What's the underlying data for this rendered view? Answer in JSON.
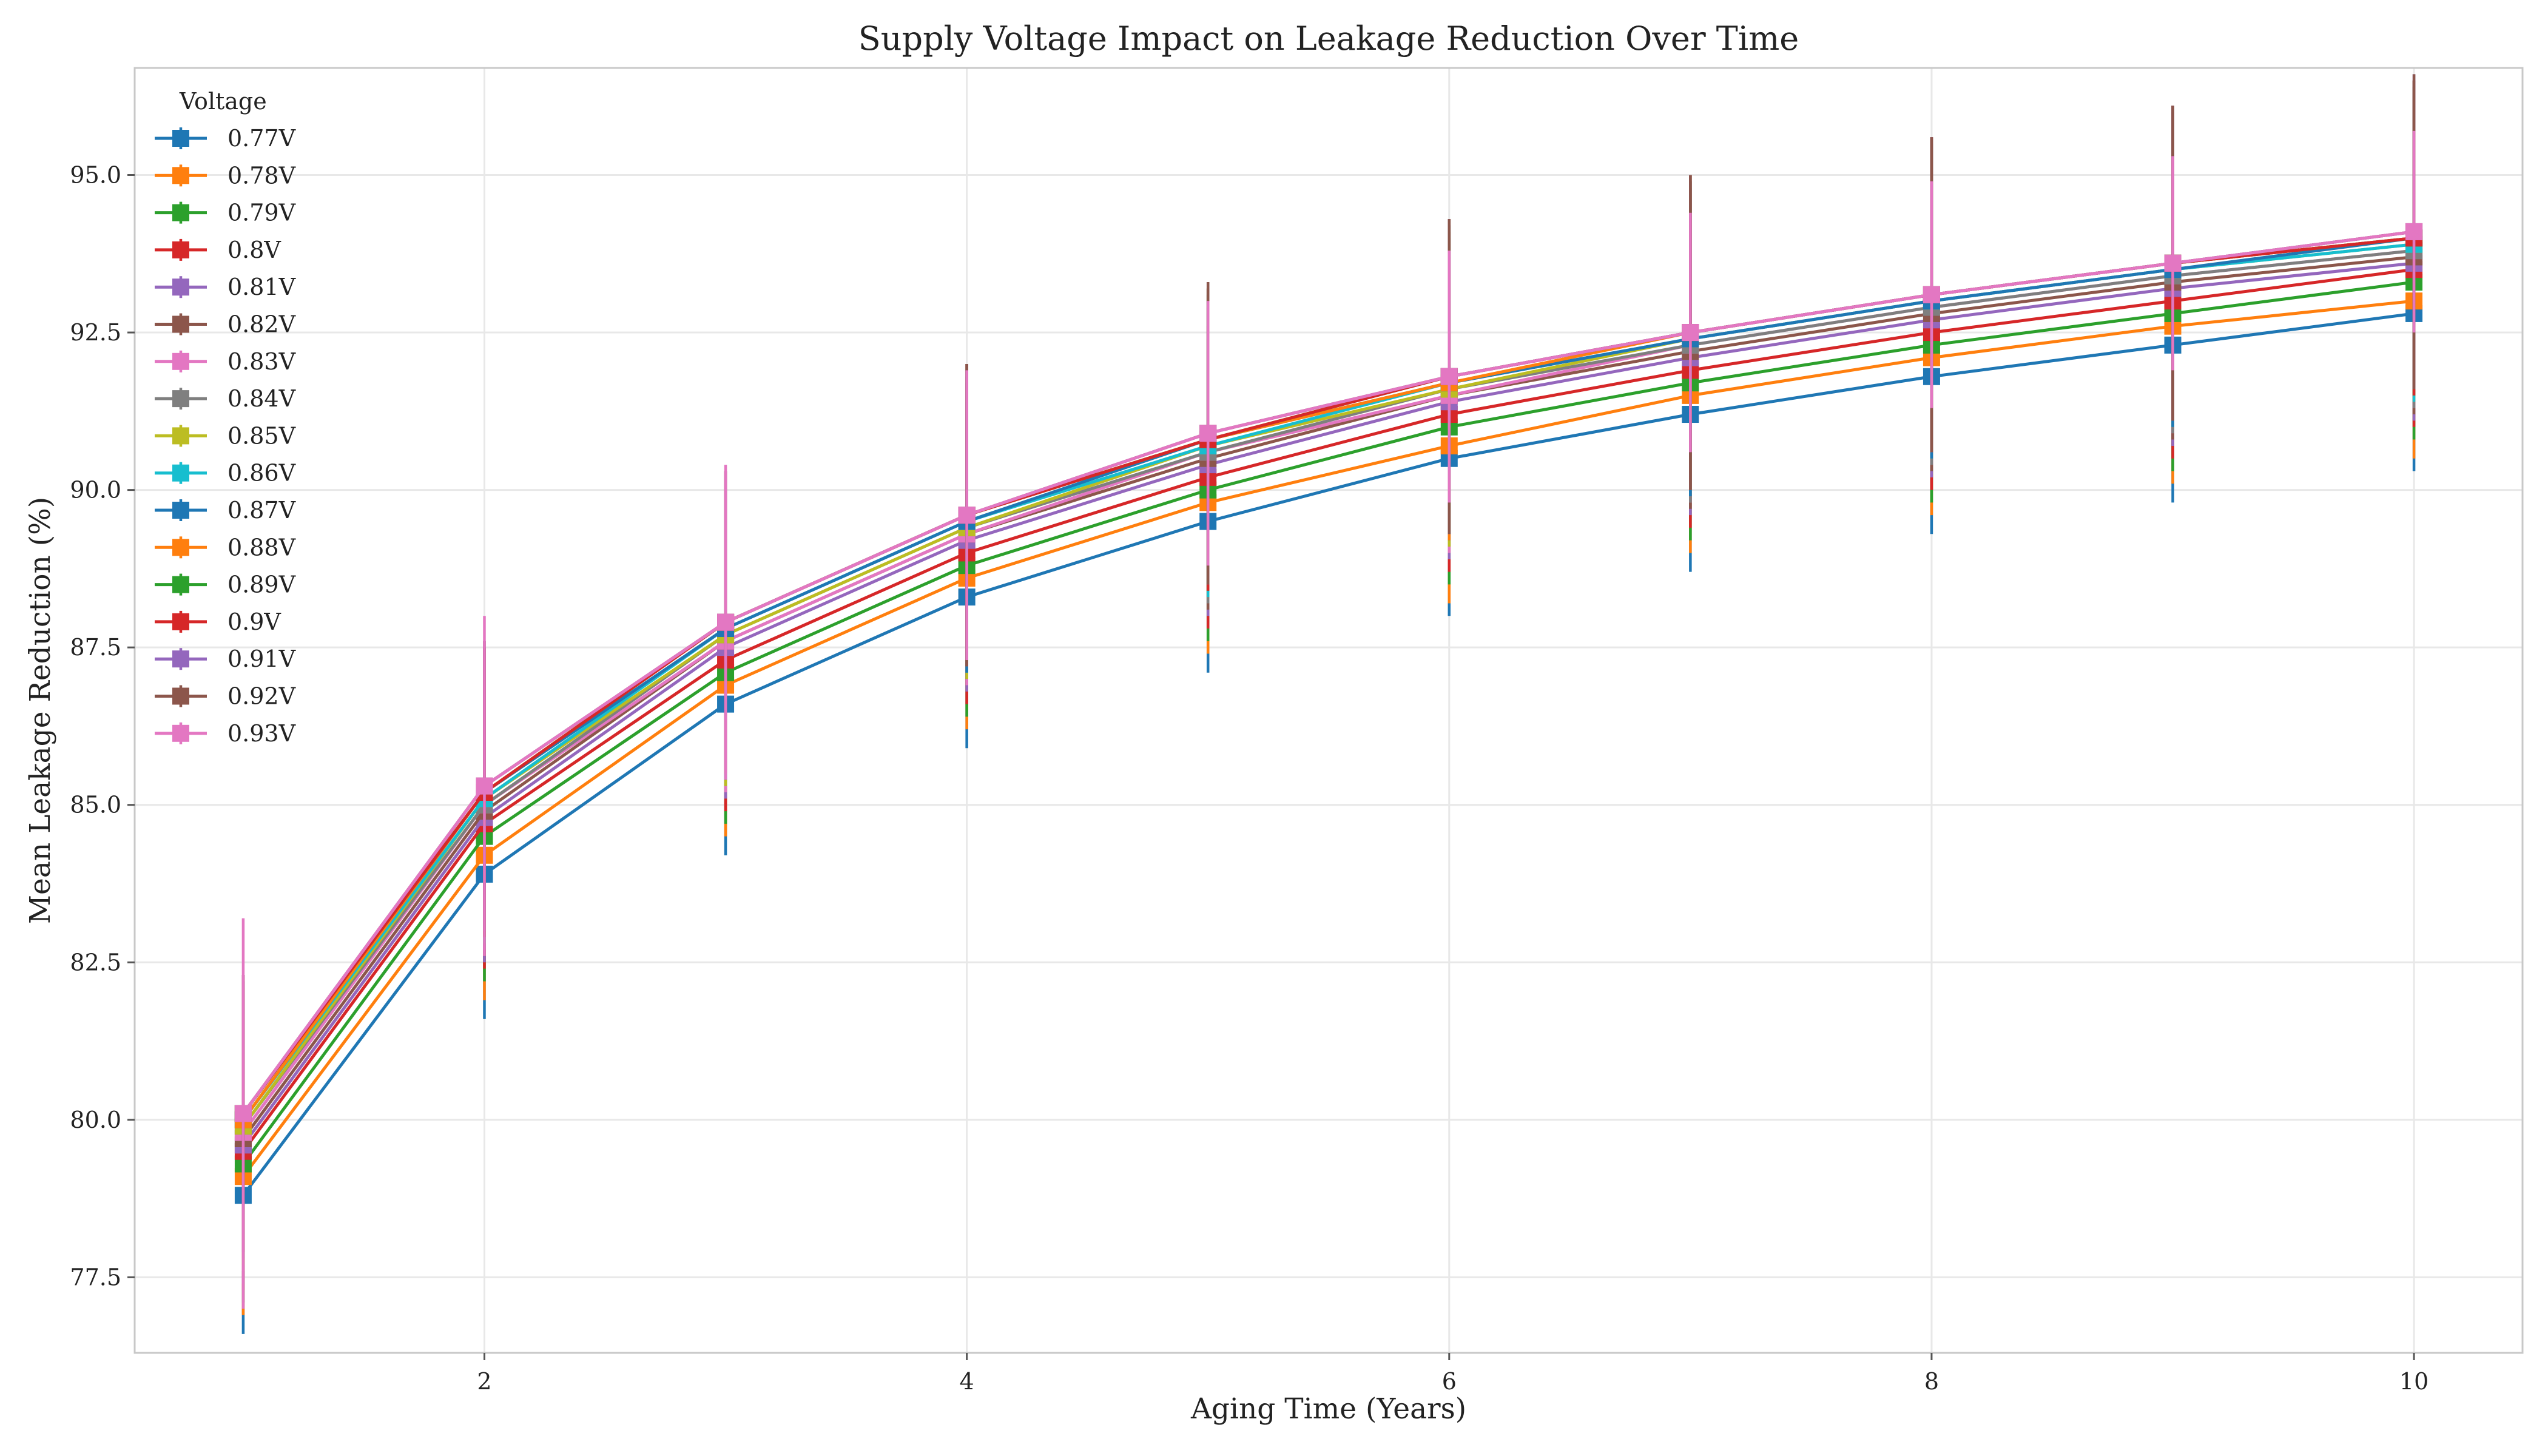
{
  "chart_data": {
    "type": "line",
    "title": "Supply Voltage Impact on Leakage Reduction Over Time",
    "xlabel": "Aging Time (Years)",
    "ylabel": "Mean Leakage Reduction (%)",
    "xlim": [
      0.55,
      10.45
    ],
    "ylim": [
      76.3,
      96.7
    ],
    "xticks": [
      2,
      4,
      6,
      8,
      10
    ],
    "yticks": [
      77.5,
      80.0,
      82.5,
      85.0,
      87.5,
      90.0,
      92.5,
      95.0
    ],
    "ytick_labels": [
      "77.5",
      "80.0",
      "82.5",
      "85.0",
      "87.5",
      "90.0",
      "92.5",
      "95.0"
    ],
    "grid": true,
    "legend_title": "Voltage",
    "legend_position": "top-left",
    "marker": "square",
    "error_bars": true,
    "x": [
      1,
      2,
      3,
      4,
      5,
      6,
      7,
      8,
      9,
      10
    ],
    "series": [
      {
        "name": "0.77V",
        "color": "#1f77b4",
        "values": [
          78.8,
          83.9,
          86.6,
          88.3,
          89.5,
          90.5,
          91.2,
          91.8,
          92.3,
          92.8
        ],
        "error": [
          2.2,
          2.3,
          2.4,
          2.4,
          2.4,
          2.5,
          2.5,
          2.5,
          2.5,
          2.5
        ]
      },
      {
        "name": "0.78V",
        "color": "#ff7f0e",
        "values": [
          79.1,
          84.2,
          86.9,
          88.6,
          89.8,
          90.7,
          91.5,
          92.1,
          92.6,
          93.0
        ],
        "error": [
          2.2,
          2.3,
          2.4,
          2.4,
          2.4,
          2.5,
          2.5,
          2.5,
          2.5,
          2.5
        ]
      },
      {
        "name": "0.79V",
        "color": "#2ca02c",
        "values": [
          79.3,
          84.5,
          87.1,
          88.8,
          90.0,
          91.0,
          91.7,
          92.3,
          92.8,
          93.3
        ],
        "error": [
          2.2,
          2.3,
          2.4,
          2.4,
          2.4,
          2.5,
          2.5,
          2.5,
          2.5,
          2.5
        ]
      },
      {
        "name": "0.8V",
        "color": "#d62728",
        "values": [
          79.5,
          84.7,
          87.3,
          89.0,
          90.2,
          91.2,
          91.9,
          92.5,
          93.0,
          93.5
        ],
        "error": [
          2.2,
          2.3,
          2.4,
          2.4,
          2.4,
          2.5,
          2.5,
          2.5,
          2.5,
          2.5
        ]
      },
      {
        "name": "0.81V",
        "color": "#9467bd",
        "values": [
          79.6,
          84.8,
          87.5,
          89.2,
          90.4,
          91.4,
          92.1,
          92.7,
          93.2,
          93.6
        ],
        "error": [
          2.2,
          2.3,
          2.4,
          2.4,
          2.4,
          2.5,
          2.5,
          2.5,
          2.5,
          2.5
        ]
      },
      {
        "name": "0.82V",
        "color": "#8c564b",
        "values": [
          79.7,
          84.9,
          87.6,
          89.3,
          90.5,
          91.5,
          92.2,
          92.8,
          93.3,
          93.7
        ],
        "error": [
          2.2,
          2.3,
          2.4,
          2.4,
          2.4,
          2.5,
          2.5,
          2.5,
          2.5,
          2.5
        ]
      },
      {
        "name": "0.83V",
        "color": "#e377c2",
        "values": [
          79.8,
          85.0,
          87.6,
          89.3,
          90.6,
          91.5,
          92.3,
          92.9,
          93.4,
          93.8
        ],
        "error": [
          2.2,
          2.3,
          2.4,
          2.4,
          2.4,
          2.5,
          2.5,
          2.5,
          2.5,
          2.5
        ]
      },
      {
        "name": "0.84V",
        "color": "#7f7f7f",
        "values": [
          79.9,
          85.0,
          87.7,
          89.4,
          90.6,
          91.6,
          92.3,
          92.9,
          93.4,
          93.8
        ],
        "error": [
          2.2,
          2.3,
          2.4,
          2.4,
          2.4,
          2.5,
          2.5,
          2.5,
          2.5,
          2.5
        ]
      },
      {
        "name": "0.85V",
        "color": "#bcbd22",
        "values": [
          79.9,
          85.1,
          87.7,
          89.4,
          90.7,
          91.6,
          92.4,
          93.0,
          93.5,
          93.9
        ],
        "error": [
          2.2,
          2.3,
          2.4,
          2.4,
          2.4,
          2.5,
          2.5,
          2.5,
          2.5,
          2.5
        ]
      },
      {
        "name": "0.86V",
        "color": "#17becf",
        "values": [
          80.0,
          85.1,
          87.8,
          89.5,
          90.7,
          91.7,
          92.4,
          93.0,
          93.5,
          93.9
        ],
        "error": [
          2.2,
          2.3,
          2.4,
          2.4,
          2.4,
          2.5,
          2.5,
          2.5,
          2.5,
          2.5
        ]
      },
      {
        "name": "0.87V",
        "color": "#1f77b4",
        "values": [
          80.0,
          85.2,
          87.8,
          89.5,
          90.8,
          91.7,
          92.4,
          93.0,
          93.5,
          94.0
        ],
        "error": [
          2.2,
          2.3,
          2.4,
          2.4,
          2.4,
          2.5,
          2.5,
          2.5,
          2.5,
          2.5
        ]
      },
      {
        "name": "0.88V",
        "color": "#ff7f0e",
        "values": [
          80.0,
          85.2,
          87.9,
          89.6,
          90.8,
          91.7,
          92.5,
          93.1,
          93.6,
          94.0
        ],
        "error": [
          2.2,
          2.3,
          2.4,
          2.4,
          2.4,
          2.5,
          2.5,
          2.5,
          2.5,
          2.5
        ]
      },
      {
        "name": "0.89V",
        "color": "#2ca02c",
        "values": [
          80.1,
          85.2,
          87.9,
          89.6,
          90.8,
          91.8,
          92.5,
          93.1,
          93.6,
          94.0
        ],
        "error": [
          2.2,
          2.3,
          2.4,
          2.4,
          2.4,
          2.5,
          2.5,
          2.5,
          2.5,
          2.5
        ]
      },
      {
        "name": "0.9V",
        "color": "#d62728",
        "values": [
          80.1,
          85.2,
          87.9,
          89.6,
          90.8,
          91.8,
          92.5,
          93.1,
          93.6,
          94.0
        ],
        "error": [
          2.2,
          2.3,
          2.4,
          2.4,
          2.4,
          2.5,
          2.5,
          2.5,
          2.5,
          2.5
        ]
      },
      {
        "name": "0.91V",
        "color": "#9467bd",
        "values": [
          80.1,
          85.3,
          87.9,
          89.6,
          90.9,
          91.8,
          92.5,
          93.1,
          93.6,
          94.1
        ],
        "error": [
          2.2,
          2.3,
          2.4,
          2.4,
          2.4,
          2.5,
          2.5,
          2.5,
          2.5,
          2.5
        ]
      },
      {
        "name": "0.92V",
        "color": "#8c564b",
        "values": [
          80.1,
          85.3,
          87.9,
          89.6,
          90.9,
          91.8,
          92.5,
          93.1,
          93.6,
          94.1
        ],
        "error": [
          2.2,
          2.3,
          2.4,
          2.4,
          2.4,
          2.5,
          2.5,
          2.5,
          2.5,
          2.5
        ]
      },
      {
        "name": "0.93V",
        "color": "#e377c2",
        "values": [
          80.1,
          85.3,
          87.9,
          89.6,
          90.9,
          91.8,
          92.5,
          93.1,
          93.6,
          94.1
        ],
        "error": [
          3.1,
          2.7,
          2.5,
          2.3,
          2.1,
          2.0,
          1.9,
          1.8,
          1.7,
          1.6
        ]
      }
    ]
  }
}
